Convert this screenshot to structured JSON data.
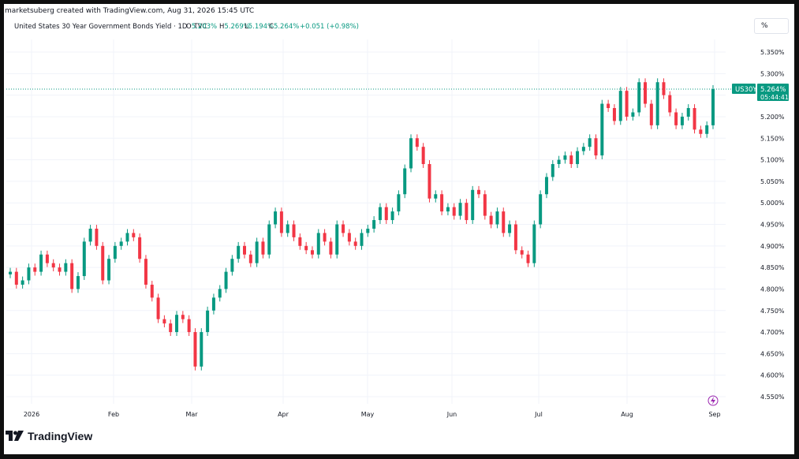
{
  "caption": "marketsuberg created with TradingView.com, Aug 31, 2026 15:45 UTC",
  "header": {
    "symbol": "United States 30 Year Government Bonds Yield · 1D · TVC",
    "o_label": "O",
    "o_value": "5.203%",
    "h_label": "H",
    "h_value": "5.269%",
    "l_label": "L",
    "l_value": "5.194%",
    "c_label": "C",
    "c_value": "5.264%",
    "change": "+0.051 (+0.98%)"
  },
  "scale_button": "%",
  "price_label": {
    "ticker": "US30Y",
    "price": "5.264%",
    "countdown": "05:44:41"
  },
  "logo_text": "TradingView",
  "colors": {
    "up": "#089981",
    "down": "#f23645",
    "grid": "#f0f3fa",
    "text": "#131722",
    "label_bg": "#089981"
  },
  "chart_data": {
    "type": "candlestick",
    "title": "United States 30 Year Government Bonds Yield · 1D · TVC",
    "y_ticks": [
      "5.350%",
      "5.300%",
      "5.250%",
      "5.200%",
      "5.150%",
      "5.100%",
      "5.050%",
      "5.000%",
      "4.950%",
      "4.900%",
      "4.850%",
      "4.800%",
      "4.750%",
      "4.700%",
      "4.650%",
      "4.600%",
      "4.550%"
    ],
    "x_ticks": [
      "2026",
      "Feb",
      "Mar",
      "Apr",
      "May",
      "Jun",
      "Jul",
      "Aug",
      "Sep"
    ],
    "ylim": [
      4.53,
      5.37
    ],
    "last_price": 5.264,
    "closes": [
      4.84,
      4.81,
      4.82,
      4.85,
      4.84,
      4.88,
      4.86,
      4.85,
      4.84,
      4.86,
      4.8,
      4.83,
      4.91,
      4.94,
      4.9,
      4.82,
      4.87,
      4.9,
      4.91,
      4.93,
      4.92,
      4.87,
      4.81,
      4.78,
      4.73,
      4.72,
      4.7,
      4.74,
      4.73,
      4.7,
      4.62,
      4.7,
      4.75,
      4.78,
      4.8,
      4.84,
      4.87,
      4.9,
      4.88,
      4.86,
      4.91,
      4.88,
      4.95,
      4.98,
      4.93,
      4.95,
      4.92,
      4.9,
      4.89,
      4.88,
      4.93,
      4.91,
      4.88,
      4.95,
      4.93,
      4.91,
      4.9,
      4.93,
      4.94,
      4.96,
      4.99,
      4.96,
      4.98,
      5.02,
      5.08,
      5.15,
      5.13,
      5.09,
      5.01,
      5.02,
      4.98,
      4.99,
      4.97,
      5.0,
      4.96,
      5.03,
      5.02,
      4.97,
      4.95,
      4.98,
      4.93,
      4.95,
      4.89,
      4.88,
      4.86,
      4.95,
      5.02,
      5.06,
      5.09,
      5.1,
      5.11,
      5.09,
      5.12,
      5.13,
      5.15,
      5.11,
      5.23,
      5.22,
      5.19,
      5.26,
      5.2,
      5.21,
      5.28,
      5.23,
      5.18,
      5.28,
      5.25,
      5.21,
      5.18,
      5.2,
      5.22,
      5.17,
      5.16,
      5.18,
      5.264
    ]
  }
}
